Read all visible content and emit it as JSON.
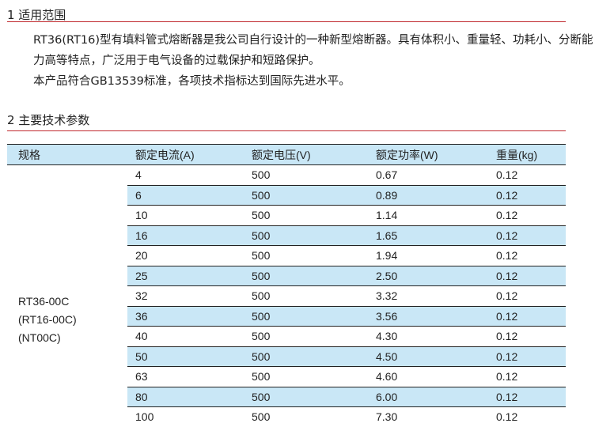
{
  "section1": {
    "title": "1 适用范围",
    "paragraphs": [
      "RT36(RT16)型有填料管式熔断器是我公司自行设计的一种新型熔断器。具有体积小、重量轻、功耗小、分断能力高等特点，广泛用于电气设备的过载保护和短路保护。",
      "本产品符合GB13539标准，各项技术指标达到国际先进水平。"
    ]
  },
  "section2": {
    "title": "2 主要技术参数"
  },
  "table": {
    "headers": [
      "规格",
      "额定电流(A)",
      "额定电压(V)",
      "额定功率(W)",
      "重量(kg)"
    ],
    "spec": [
      "RT36-00C",
      "(RT16-00C)",
      "(NT00C)"
    ],
    "rows": [
      [
        "4",
        "500",
        "0.67",
        "0.12"
      ],
      [
        "6",
        "500",
        "0.89",
        "0.12"
      ],
      [
        "10",
        "500",
        "1.14",
        "0.12"
      ],
      [
        "16",
        "500",
        "1.65",
        "0.12"
      ],
      [
        "20",
        "500",
        "1.94",
        "0.12"
      ],
      [
        "25",
        "500",
        "2.50",
        "0.12"
      ],
      [
        "32",
        "500",
        "3.32",
        "0.12"
      ],
      [
        "36",
        "500",
        "3.56",
        "0.12"
      ],
      [
        "40",
        "500",
        "4.30",
        "0.12"
      ],
      [
        "50",
        "500",
        "4.50",
        "0.12"
      ],
      [
        "63",
        "500",
        "4.60",
        "0.12"
      ],
      [
        "80",
        "500",
        "6.00",
        "0.12"
      ],
      [
        "100",
        "500",
        "7.30",
        "0.12"
      ]
    ]
  },
  "colors": {
    "rule": "#c0282d",
    "stripe": "#c9e7f6"
  }
}
